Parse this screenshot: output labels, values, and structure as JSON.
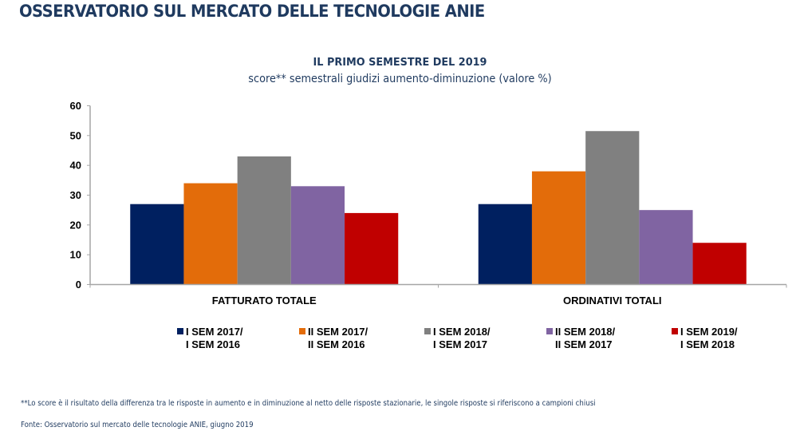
{
  "page": {
    "title": "OSSERVATORIO SUL MERCATO DELLE TECNOLOGIE ANIE",
    "footnote": "**Lo score è il risultato della differenza tra le risposte in aumento e in diminuzione al netto delle risposte stazionarie, le singole risposte si riferiscono a campioni chiusi",
    "source": "Fonte: Osservatorio sul mercato delle tecnologie ANIE, giugno 2019"
  },
  "chart_data": {
    "type": "bar",
    "title": "IL PRIMO SEMESTRE DEL 2019",
    "subtitle": "score** semestrali giudizi aumento-diminuzione (valore %)",
    "xlabel": "",
    "ylabel": "",
    "ylim": [
      0,
      60
    ],
    "yticks": [
      0,
      10,
      20,
      30,
      40,
      50,
      60
    ],
    "grid": false,
    "legend_position": "bottom",
    "categories": [
      "FATTURATO TOTALE",
      "ORDINATIVI TOTALI"
    ],
    "series": [
      {
        "name": "I SEM 2017/ I SEM 2016",
        "line1": "I SEM 2017/",
        "line2": "I SEM 2016",
        "color": "#002060",
        "values": [
          27,
          27
        ]
      },
      {
        "name": "II SEM 2017/ II SEM 2016",
        "line1": "II SEM 2017/",
        "line2": "II SEM 2016",
        "color": "#e36c0a",
        "values": [
          34,
          38
        ]
      },
      {
        "name": "I SEM 2018/ I SEM 2017",
        "line1": "I SEM 2018/",
        "line2": "I SEM 2017",
        "color": "#808080",
        "values": [
          43,
          51.5
        ]
      },
      {
        "name": "II SEM 2018/ II SEM 2017",
        "line1": "II SEM 2018/",
        "line2": "II SEM 2017",
        "color": "#8064a2",
        "values": [
          33,
          25
        ]
      },
      {
        "name": "I SEM 2019/ I SEM 2018",
        "line1": "I SEM 2019/",
        "line2": "I SEM 2018",
        "color": "#c00000",
        "values": [
          24,
          14
        ]
      }
    ]
  }
}
